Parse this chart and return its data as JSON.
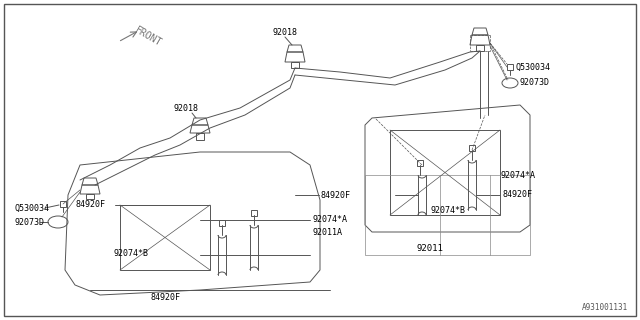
{
  "bg_color": "#ffffff",
  "line_color": "#555555",
  "text_color": "#000000",
  "fig_width": 6.4,
  "fig_height": 3.2,
  "dpi": 100,
  "watermark": "A931001131",
  "front_label": "FRONT",
  "p92018_top": "92018",
  "p92018_mid": "92018",
  "p0530034_right": "Q530034",
  "p92073D_right": "92073D",
  "p0530034_left": "Q530034",
  "p92073D_left": "92073D",
  "p84920F_a": "84920F",
  "p84920F_b": "84920F",
  "p84920F_c": "84920F",
  "p84920F_d": "84920F",
  "p92074A_left": "92074*A",
  "p92074B_left": "92074*B",
  "p92011A": "92011A",
  "p92074A_right": "92074*A",
  "p92074B_right": "92074*B",
  "p92011": "92011"
}
